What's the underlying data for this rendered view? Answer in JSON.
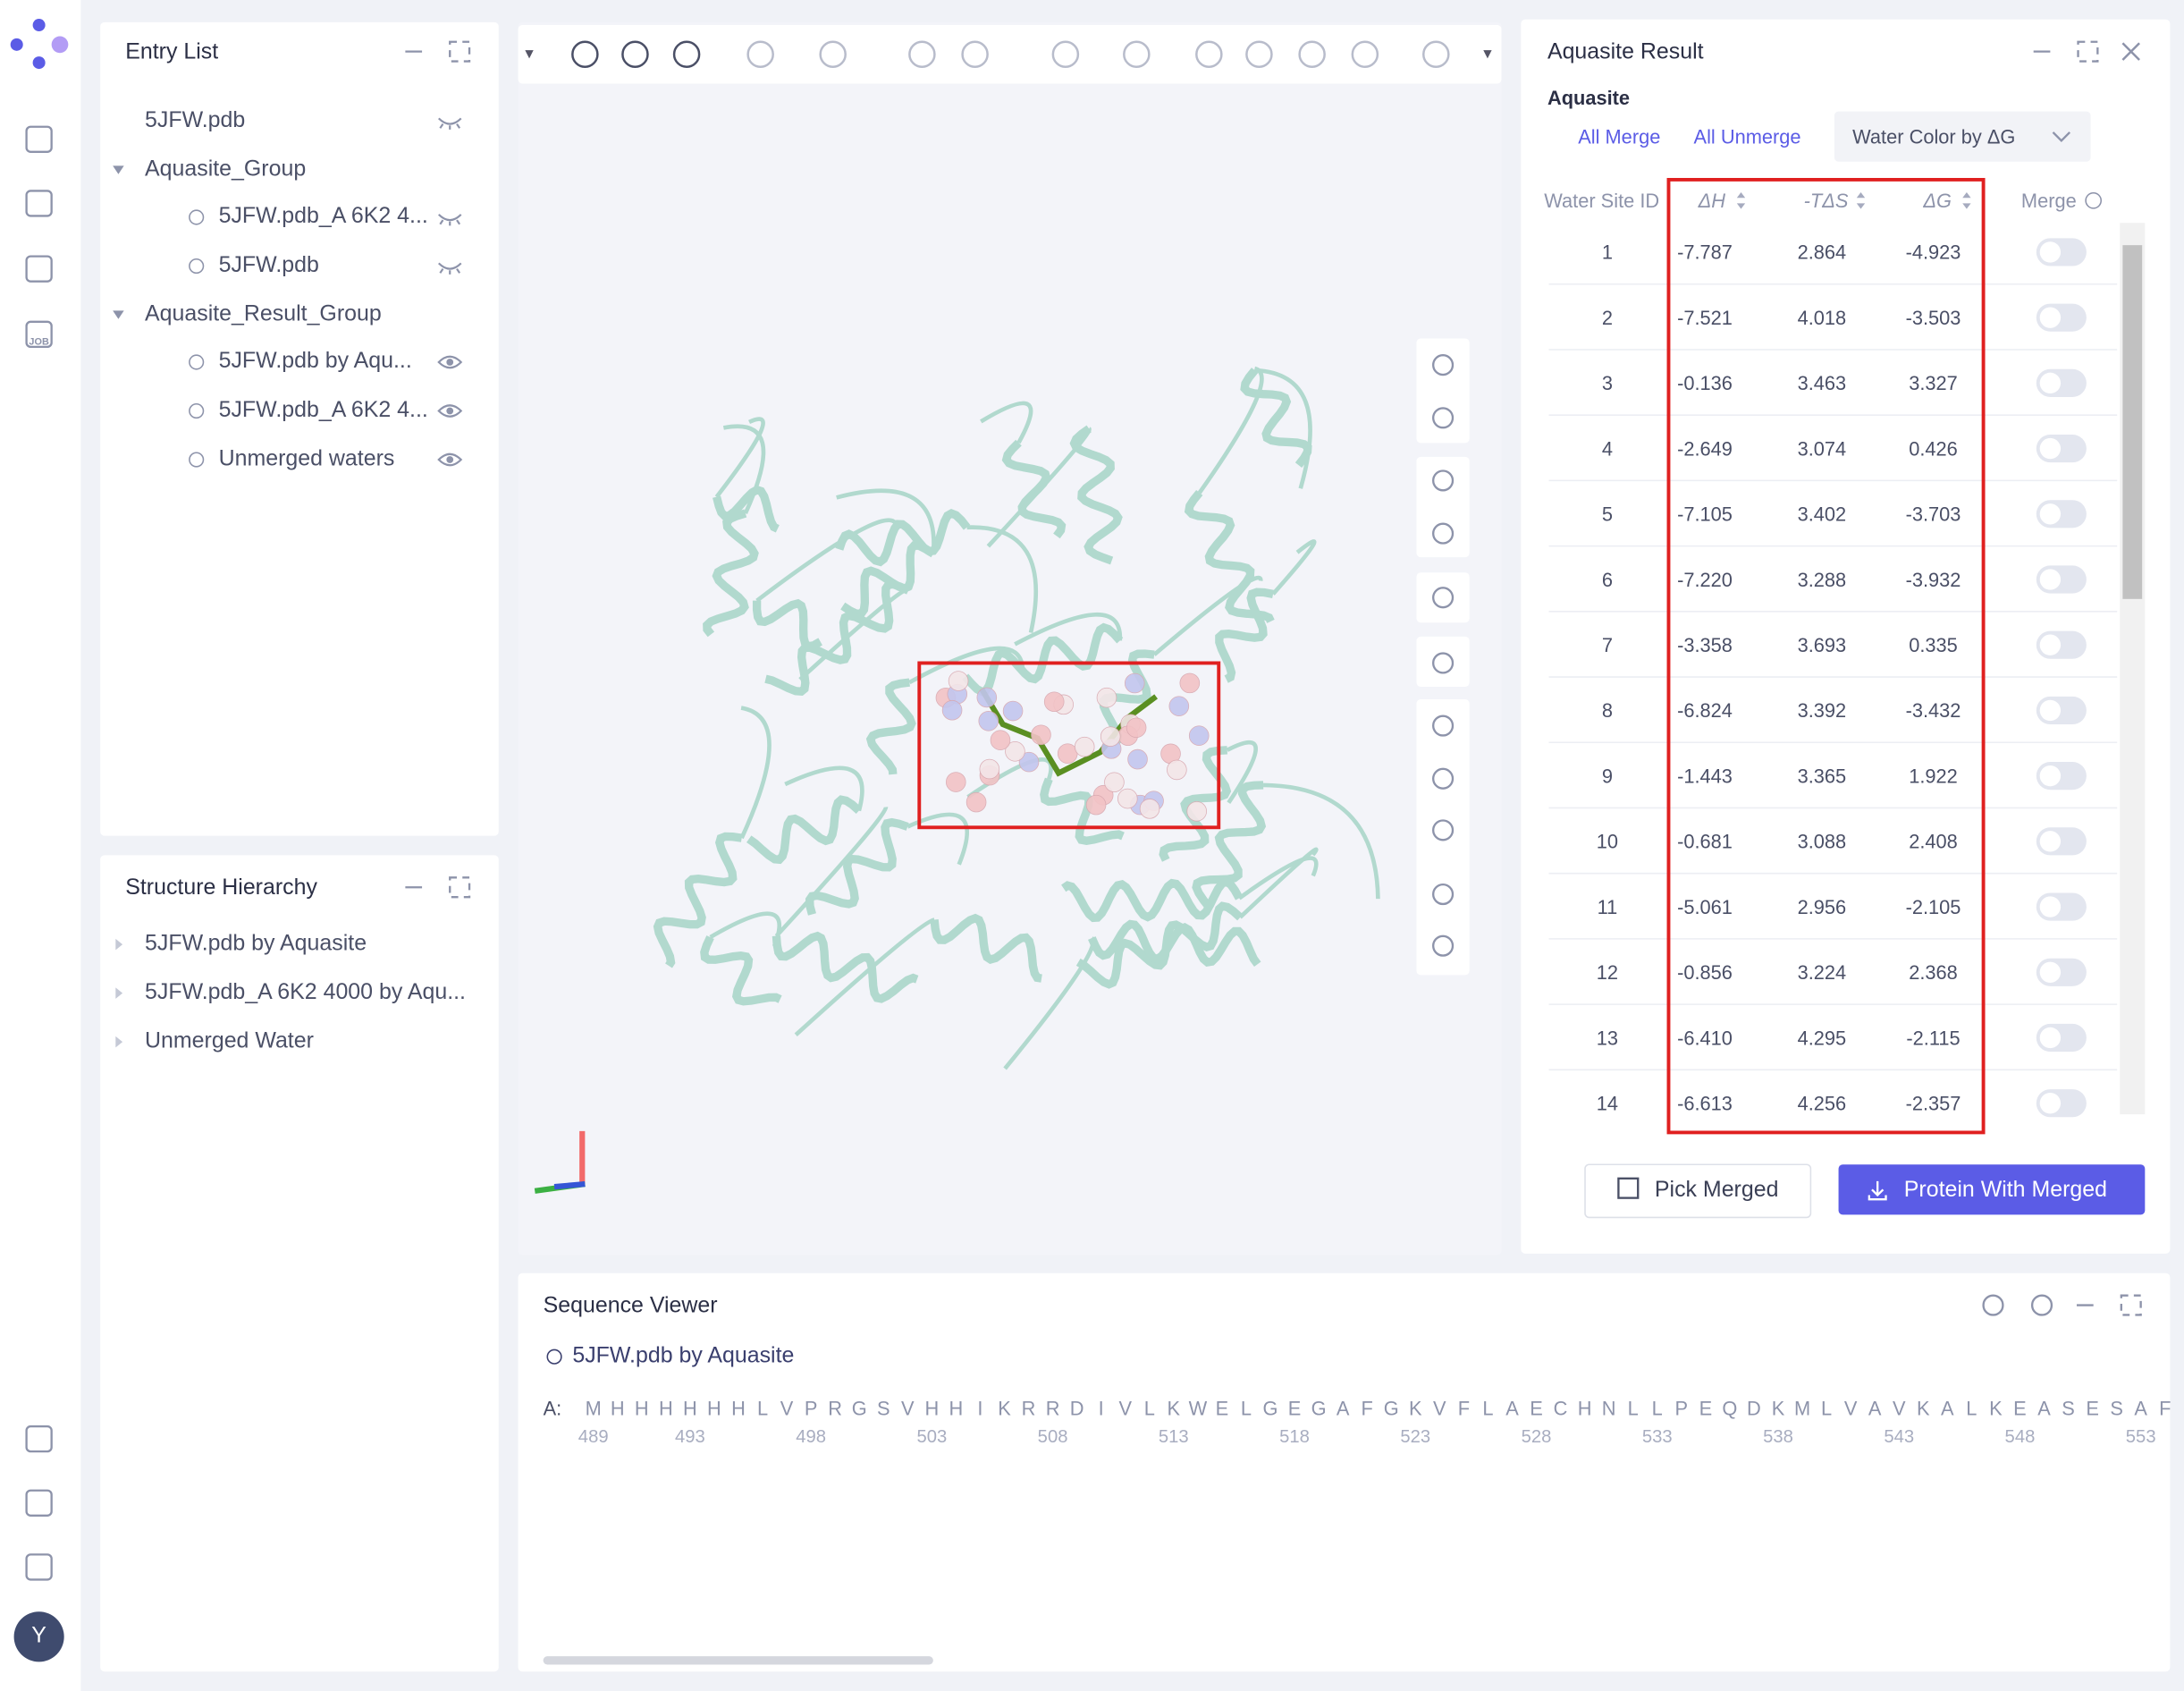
{
  "sidebar": {
    "job_label": "JOB",
    "avatar": "Y"
  },
  "entry_list": {
    "title": "Entry List",
    "items": [
      "5JFW.pdb",
      "Aquasite_Group",
      "5JFW.pdb_A 6K2 4...",
      "5JFW.pdb",
      "Aquasite_Result_Group",
      "5JFW.pdb by Aqu...",
      "5JFW.pdb_A 6K2 4...",
      "Unmerged waters"
    ]
  },
  "structure_hierarchy": {
    "title": "Structure Hierarchy",
    "items": [
      "5JFW.pdb by Aquasite",
      "5JFW.pdb_A 6K2 4000 by Aqu...",
      "Unmerged Water"
    ]
  },
  "aquasite_result": {
    "title": "Aquasite Result",
    "subtitle": "Aquasite",
    "actions": [
      "All Merge",
      "All Unmerge"
    ],
    "color_select": "Water Color by ΔG",
    "table": {
      "columns": [
        "Water Site ID",
        "ΔH",
        "-TΔS",
        "ΔG",
        "Merge"
      ],
      "rows": [
        [
          "1",
          "-7.787",
          "2.864",
          "-4.923"
        ],
        [
          "2",
          "-7.521",
          "4.018",
          "-3.503"
        ],
        [
          "3",
          "-0.136",
          "3.463",
          "3.327"
        ],
        [
          "4",
          "-2.649",
          "3.074",
          "0.426"
        ],
        [
          "5",
          "-7.105",
          "3.402",
          "-3.703"
        ],
        [
          "6",
          "-7.220",
          "3.288",
          "-3.932"
        ],
        [
          "7",
          "-3.358",
          "3.693",
          "0.335"
        ],
        [
          "8",
          "-6.824",
          "3.392",
          "-3.432"
        ],
        [
          "9",
          "-1.443",
          "3.365",
          "1.922"
        ],
        [
          "10",
          "-0.681",
          "3.088",
          "2.408"
        ],
        [
          "11",
          "-5.061",
          "2.956",
          "-2.105"
        ],
        [
          "12",
          "-0.856",
          "3.224",
          "2.368"
        ],
        [
          "13",
          "-6.410",
          "4.295",
          "-2.115"
        ],
        [
          "14",
          "-6.613",
          "4.256",
          "-2.357"
        ]
      ]
    },
    "buttons": [
      "Pick Merged",
      "Protein With Merged"
    ]
  },
  "sequence_viewer": {
    "title": "Sequence Viewer",
    "entry": "5JFW.pdb by Aquasite",
    "chain": "A:",
    "residues": [
      "M",
      "H",
      "H",
      "H",
      "H",
      "H",
      "H",
      "L",
      "V",
      "P",
      "R",
      "G",
      "S",
      "V",
      "H",
      "H",
      "I",
      "K",
      "R",
      "R",
      "D",
      "I",
      "V",
      "L",
      "K",
      "W",
      "E",
      "L",
      "G",
      "E",
      "G",
      "A",
      "F",
      "G",
      "K",
      "V",
      "F",
      "L",
      "A",
      "E",
      "C",
      "H",
      "N",
      "L",
      "L",
      "P",
      "E",
      "Q",
      "D",
      "K",
      "M",
      "L",
      "V",
      "A",
      "V",
      "K",
      "A",
      "L",
      "K",
      "E",
      "A",
      "S",
      "E",
      "S",
      "A",
      "F"
    ],
    "ticks": [
      "489",
      "493",
      "498",
      "503",
      "508",
      "513",
      "518",
      "523",
      "528",
      "533",
      "538",
      "543",
      "548",
      "553"
    ]
  }
}
